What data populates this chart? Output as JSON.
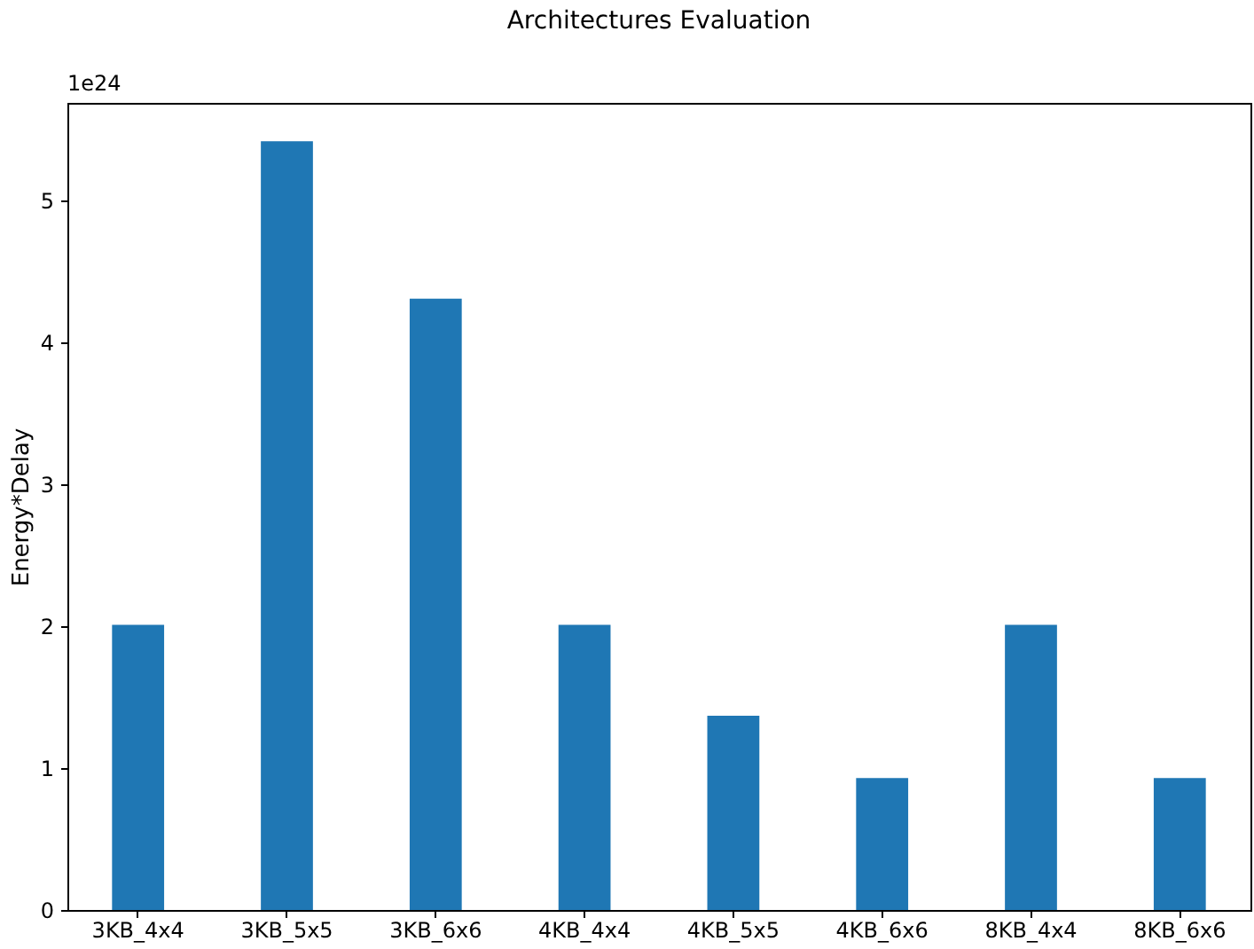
{
  "chart_data": {
    "type": "bar",
    "title": "Architectures Evaluation",
    "ylabel": "Energy*Delay",
    "categories": [
      "3KB_4x4",
      "3KB_5x5",
      "3KB_6x6",
      "4KB_4x4",
      "4KB_5x5",
      "4KB_6x6",
      "8KB_4x4",
      "8KB_6x6"
    ],
    "values": [
      2.01,
      5.42,
      4.31,
      2.01,
      1.37,
      0.93,
      2.01,
      0.93
    ],
    "color": "#1f77b4",
    "ylim": [
      0,
      5.69
    ],
    "yticks": [
      0,
      1,
      2,
      3,
      4,
      5
    ],
    "grid": false,
    "annotations": [
      "1e24"
    ]
  }
}
